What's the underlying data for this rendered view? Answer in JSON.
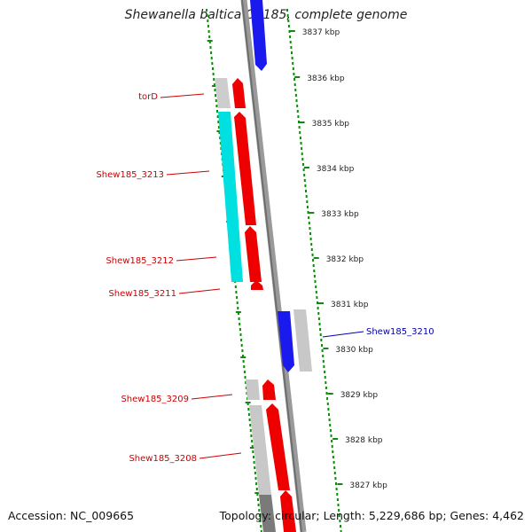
{
  "title": "Shewanella baltica OS185, complete genome",
  "footer": {
    "accession": "Accession: NC_009665",
    "summary": "Topology: circular; Length: 5,229,686 bp; Genes: 4,462"
  },
  "ticks": [
    "3837 kbp",
    "3836 kbp",
    "3835 kbp",
    "3834 kbp",
    "3833 kbp",
    "3832 kbp",
    "3831 kbp",
    "3830 kbp",
    "3829 kbp",
    "3828 kbp",
    "3827 kbp"
  ],
  "genes": [
    {
      "name": "torD",
      "color": "#cc0000"
    },
    {
      "name": "Shew185_3213",
      "color": "#cc0000"
    },
    {
      "name": "Shew185_3212",
      "color": "#cc0000"
    },
    {
      "name": "Shew185_3211",
      "color": "#cc0000"
    },
    {
      "name": "Shew185_3210",
      "color": "#0000aa"
    },
    {
      "name": "Shew185_3209",
      "color": "#cc0000"
    },
    {
      "name": "Shew185_3208",
      "color": "#cc0000"
    }
  ],
  "colors": {
    "forward_cds": "#ee0000",
    "reverse_cds": "#1a1aee",
    "gene_forward": "#c8c8c8",
    "gene_dark": "#7a7a7a",
    "rna": "#00e0e0",
    "backbone": "#8a8a8a",
    "scale_dots": "#118811"
  }
}
